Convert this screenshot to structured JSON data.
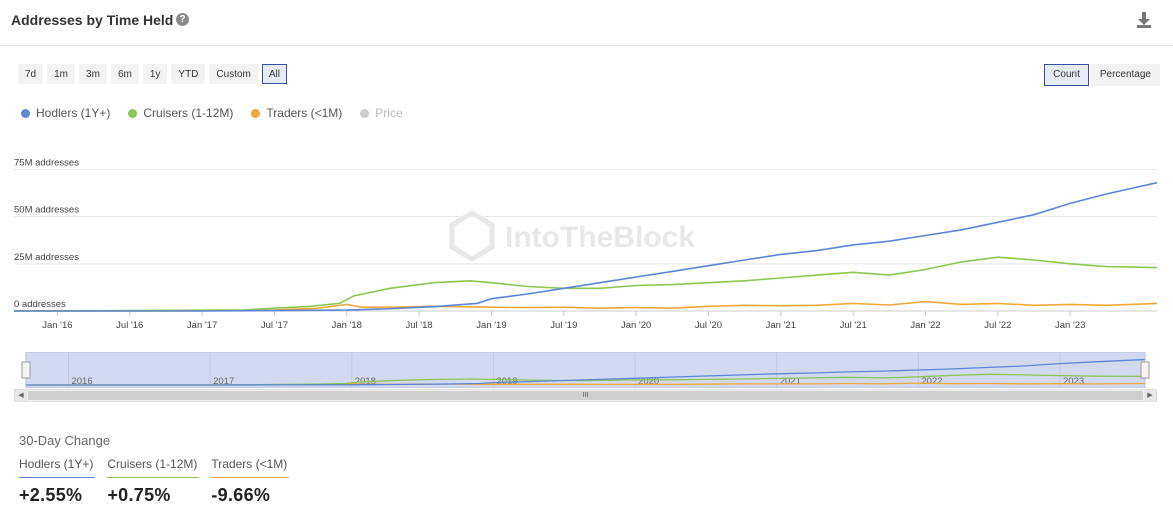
{
  "header": {
    "title": "Addresses by Time Held",
    "help_icon": "?",
    "download_icon": "download-icon"
  },
  "ranges": [
    "7d",
    "1m",
    "3m",
    "6m",
    "1y",
    "YTD",
    "Custom",
    "All"
  ],
  "active_range": "All",
  "modes": [
    "Count",
    "Percentage"
  ],
  "active_mode": "Count",
  "watermark": "IntoTheBlock",
  "colors": {
    "hodlers": "#5b86d6",
    "cruisers": "#8cc653",
    "traders": "#f0a83a",
    "price": "#cccccc"
  },
  "chart_data": {
    "type": "line",
    "y_tick_labels": [
      "0 addresses",
      "25M addresses",
      "50M addresses",
      "75M addresses"
    ],
    "y_ticks": [
      0,
      25,
      50,
      75
    ],
    "ylim": [
      0,
      80
    ],
    "x_tick_labels": [
      "Jan '16",
      "Jul '16",
      "Jan '17",
      "Jul '17",
      "Jan '18",
      "Jul '18",
      "Jan '19",
      "Jul '19",
      "Jan '20",
      "Jul '20",
      "Jan '21",
      "Jul '21",
      "Jan '22",
      "Jul '22",
      "Jan '23"
    ],
    "x_ticks": [
      2016.0,
      2016.5,
      2017.0,
      2017.5,
      2018.0,
      2018.5,
      2019.0,
      2019.5,
      2020.0,
      2020.5,
      2021.0,
      2021.5,
      2022.0,
      2022.5,
      2023.0
    ],
    "xlim": [
      2015.7,
      2023.6
    ],
    "legend": [
      {
        "name": "Hodlers (1Y+)",
        "key": "hodlers",
        "visible": true
      },
      {
        "name": "Cruisers (1-12M)",
        "key": "cruisers",
        "visible": true
      },
      {
        "name": "Traders (<1M)",
        "key": "traders",
        "visible": true
      },
      {
        "name": "Price",
        "key": "price",
        "visible": false
      }
    ],
    "series": [
      {
        "key": "hodlers",
        "x": [
          2015.7,
          2016.5,
          2017.0,
          2017.5,
          2018.0,
          2018.3,
          2018.6,
          2018.9,
          2019.0,
          2019.25,
          2019.5,
          2019.75,
          2020.0,
          2020.25,
          2020.5,
          2020.75,
          2021.0,
          2021.25,
          2021.5,
          2021.75,
          2022.0,
          2022.25,
          2022.5,
          2022.75,
          2023.0,
          2023.25,
          2023.6
        ],
        "y": [
          0,
          0,
          0,
          0.2,
          0.5,
          1.2,
          2.3,
          4,
          6.5,
          9,
          12,
          15,
          18,
          21,
          24,
          27,
          30,
          32,
          35,
          37,
          40,
          43,
          47,
          51,
          57,
          62,
          68
        ]
      },
      {
        "key": "cruisers",
        "x": [
          2015.7,
          2016.5,
          2017.0,
          2017.3,
          2017.5,
          2017.75,
          2017.95,
          2018.05,
          2018.3,
          2018.6,
          2018.85,
          2019.0,
          2019.25,
          2019.5,
          2019.75,
          2020.0,
          2020.25,
          2020.5,
          2020.75,
          2021.0,
          2021.25,
          2021.5,
          2021.75,
          2022.0,
          2022.25,
          2022.5,
          2022.75,
          2023.0,
          2023.25,
          2023.6
        ],
        "y": [
          0,
          0.2,
          0.4,
          0.6,
          1.5,
          2.5,
          4,
          8,
          12,
          15,
          16,
          15,
          13,
          12,
          12,
          13.5,
          14,
          15,
          16,
          17.5,
          19,
          20.5,
          19,
          22,
          26,
          28.5,
          27,
          25,
          23.5,
          23
        ]
      },
      {
        "key": "traders",
        "x": [
          2015.7,
          2016.5,
          2017.0,
          2017.5,
          2017.8,
          2018.0,
          2018.1,
          2018.3,
          2018.6,
          2019.0,
          2019.25,
          2019.5,
          2019.75,
          2020.0,
          2020.25,
          2020.5,
          2020.75,
          2021.0,
          2021.25,
          2021.5,
          2021.75,
          2022.0,
          2022.25,
          2022.5,
          2022.75,
          2023.0,
          2023.25,
          2023.6
        ],
        "y": [
          0,
          0,
          0.1,
          0.5,
          1.5,
          3.5,
          2,
          2,
          2.5,
          2,
          1.8,
          2,
          1.5,
          1.8,
          1.5,
          2.5,
          3,
          2.8,
          3,
          4,
          3.2,
          5,
          3.5,
          4,
          3,
          3.5,
          3,
          4
        ]
      }
    ]
  },
  "navigator": {
    "year_labels": [
      "2016",
      "2017",
      "2018",
      "2019",
      "2020",
      "2021",
      "2022",
      "2023"
    ],
    "year_x": [
      2016.0,
      2017.0,
      2018.0,
      2019.0,
      2020.0,
      2021.0,
      2022.0,
      2023.0
    ],
    "grip": "III"
  },
  "changes": {
    "title": "30-Day Change",
    "items": [
      {
        "label": "Hodlers (1Y+)",
        "value": "+2.55%",
        "key": "hodlers"
      },
      {
        "label": "Cruisers (1-12M)",
        "value": "+0.75%",
        "key": "cruisers"
      },
      {
        "label": "Traders (<1M)",
        "value": "-9.66%",
        "key": "traders"
      }
    ]
  }
}
